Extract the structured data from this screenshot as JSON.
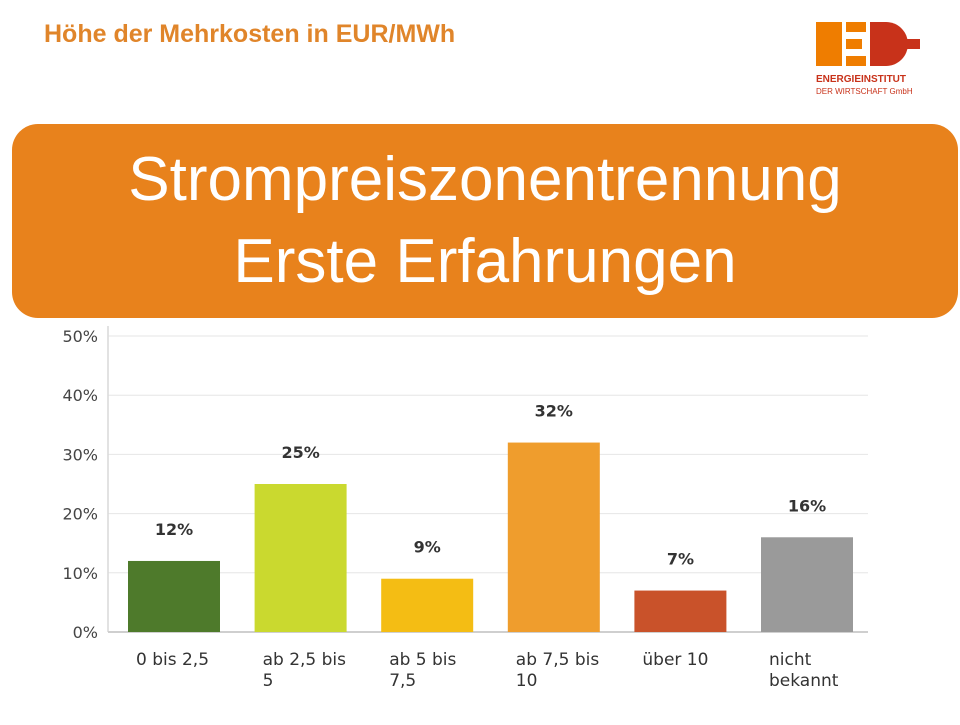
{
  "header": {
    "title": "Höhe der Mehrkosten in EUR/MWh"
  },
  "logo": {
    "name": "ENERGIEINSTITUT",
    "subtitle": "DER WIRTSCHAFT GmbH",
    "colors": [
      "#ef7d00",
      "#c8321a"
    ]
  },
  "banner": {
    "line1": "Strompreiszonentrennung",
    "line2": "Erste Erfahrungen",
    "color": "#e8821c"
  },
  "chart_data": {
    "type": "bar",
    "categories": [
      "0 bis 2,5",
      "ab 2,5 bis 5",
      "ab 5 bis 7,5",
      "ab 7,5 bis 10",
      "über 10",
      "nicht bekannt"
    ],
    "category_lines": [
      [
        "0 bis 2,5"
      ],
      [
        "ab 2,5 bis",
        "5"
      ],
      [
        "ab 5 bis",
        "7,5"
      ],
      [
        "ab 7,5 bis",
        "10"
      ],
      [
        "über 10"
      ],
      [
        "nicht",
        "bekannt"
      ]
    ],
    "values": [
      12,
      25,
      9,
      32,
      7,
      16
    ],
    "value_labels": [
      "12%",
      "25%",
      "9%",
      "32%",
      "7%",
      "16%"
    ],
    "colors": [
      "#4e7a2b",
      "#cad92f",
      "#f4bd14",
      "#ef9d2d",
      "#c9522a",
      "#9a9a9a"
    ],
    "yticks": [
      "0%",
      "10%",
      "20%",
      "30%",
      "40%",
      "50%"
    ],
    "ylim": [
      0,
      50
    ],
    "grid": true
  }
}
